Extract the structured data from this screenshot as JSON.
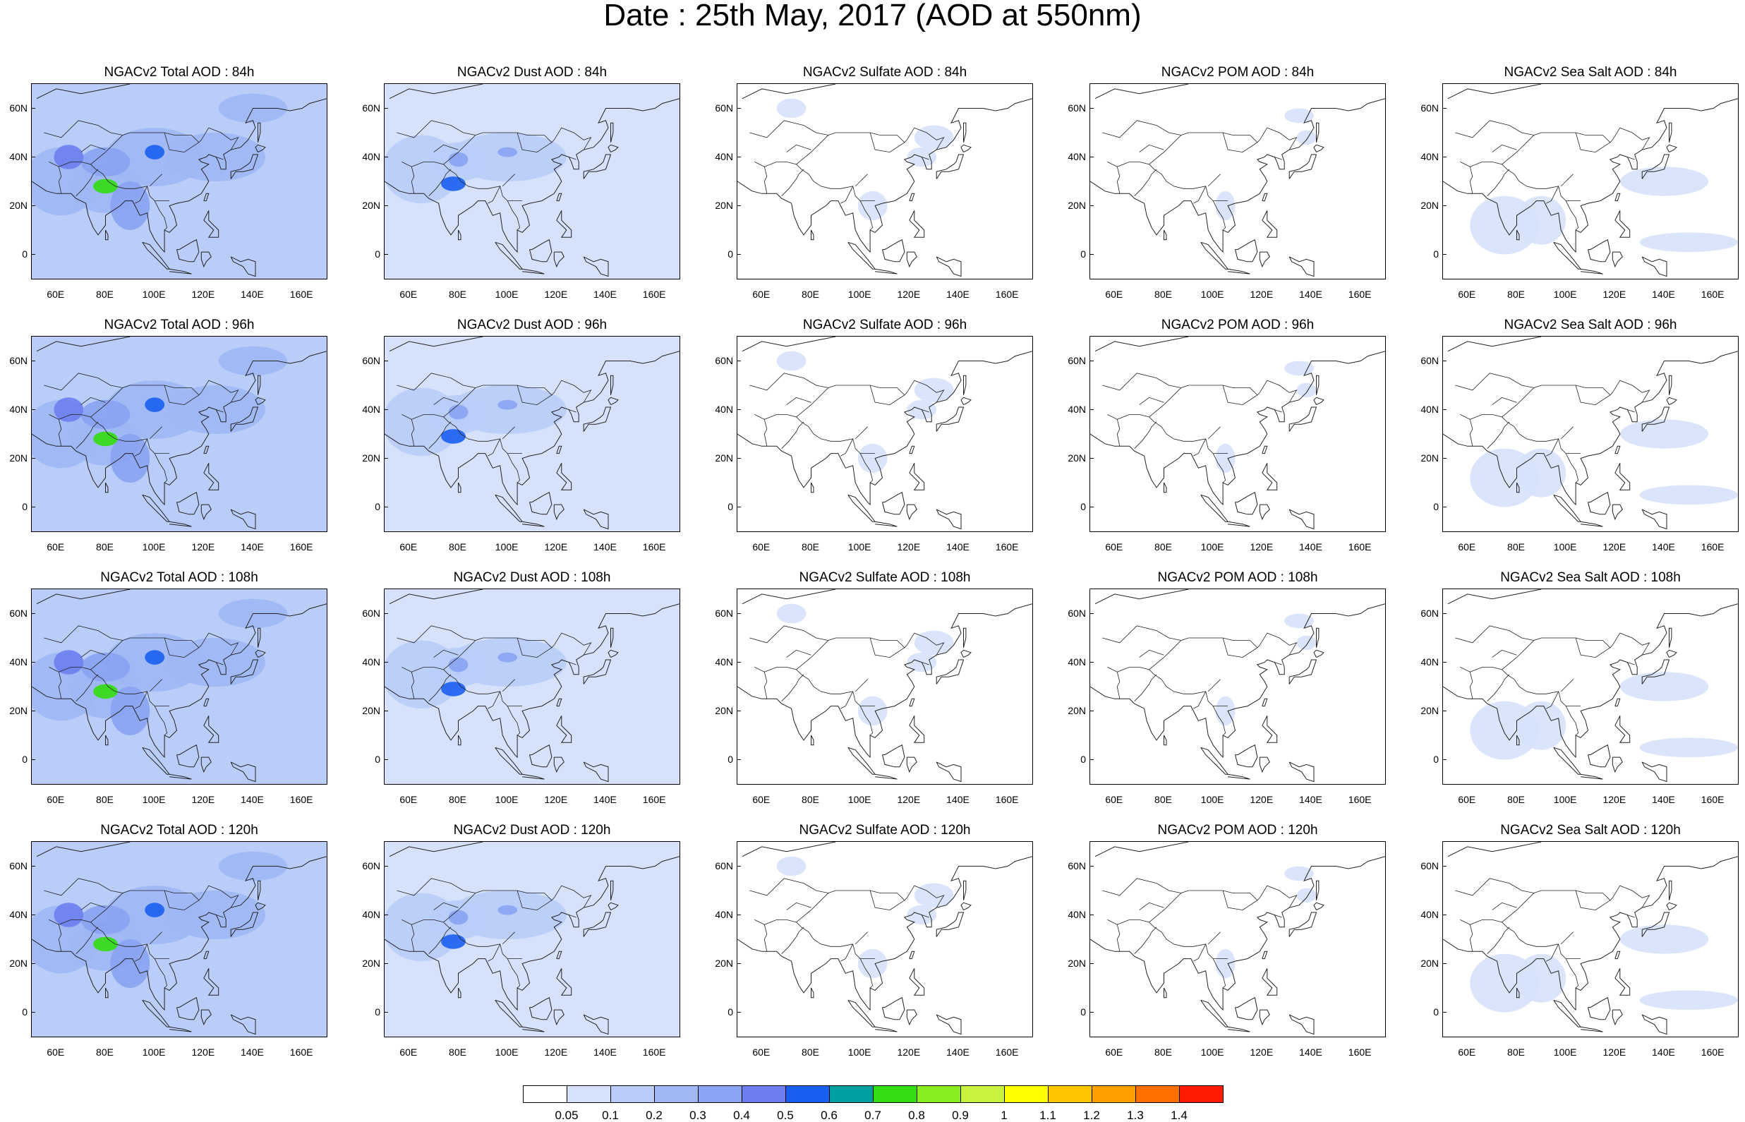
{
  "title": "Date : 25th May, 2017 (AOD at 550nm)",
  "axes": {
    "x_ticks": [
      "60E",
      "80E",
      "100E",
      "120E",
      "140E",
      "160E"
    ],
    "x_tick_values": [
      60,
      80,
      100,
      120,
      140,
      160
    ],
    "y_ticks": [
      "60N",
      "40N",
      "20N",
      "0"
    ],
    "y_tick_values": [
      60,
      40,
      20,
      0
    ],
    "lon_range": [
      50,
      170
    ],
    "lat_range": [
      -10,
      70
    ]
  },
  "panels": [
    {
      "title": "NGACv2 Total AOD : 84h",
      "variable": "total",
      "hour": "84h",
      "level": 3
    },
    {
      "title": "NGACv2 Dust AOD : 84h",
      "variable": "dust",
      "hour": "84h",
      "level": 2
    },
    {
      "title": "NGACv2 Sulfate AOD : 84h",
      "variable": "sulfate",
      "hour": "84h",
      "level": 1
    },
    {
      "title": "NGACv2 POM AOD : 84h",
      "variable": "pom",
      "hour": "84h",
      "level": 1
    },
    {
      "title": "NGACv2 Sea Salt AOD : 84h",
      "variable": "seasalt",
      "hour": "84h",
      "level": 1
    },
    {
      "title": "NGACv2 Total AOD : 96h",
      "variable": "total",
      "hour": "96h",
      "level": 3
    },
    {
      "title": "NGACv2 Dust AOD : 96h",
      "variable": "dust",
      "hour": "96h",
      "level": 2
    },
    {
      "title": "NGACv2 Sulfate AOD : 96h",
      "variable": "sulfate",
      "hour": "96h",
      "level": 1
    },
    {
      "title": "NGACv2 POM AOD : 96h",
      "variable": "pom",
      "hour": "96h",
      "level": 1
    },
    {
      "title": "NGACv2 Sea Salt AOD : 96h",
      "variable": "seasalt",
      "hour": "96h",
      "level": 1
    },
    {
      "title": "NGACv2 Total AOD : 108h",
      "variable": "total",
      "hour": "108h",
      "level": 3
    },
    {
      "title": "NGACv2 Dust AOD : 108h",
      "variable": "dust",
      "hour": "108h",
      "level": 2
    },
    {
      "title": "NGACv2 Sulfate AOD : 108h",
      "variable": "sulfate",
      "hour": "108h",
      "level": 1
    },
    {
      "title": "NGACv2 POM AOD : 108h",
      "variable": "pom",
      "hour": "108h",
      "level": 1
    },
    {
      "title": "NGACv2 Sea Salt AOD : 108h",
      "variable": "seasalt",
      "hour": "108h",
      "level": 1
    },
    {
      "title": "NGACv2 Total AOD : 120h",
      "variable": "total",
      "hour": "120h",
      "level": 3
    },
    {
      "title": "NGACv2 Dust AOD : 120h",
      "variable": "dust",
      "hour": "120h",
      "level": 2
    },
    {
      "title": "NGACv2 Sulfate AOD : 120h",
      "variable": "sulfate",
      "hour": "120h",
      "level": 1
    },
    {
      "title": "NGACv2 POM AOD : 120h",
      "variable": "pom",
      "hour": "120h",
      "level": 1
    },
    {
      "title": "NGACv2 Sea Salt  AOD : 120h",
      "variable": "seasalt",
      "hour": "120h",
      "level": 1
    }
  ],
  "colorbar": {
    "labels": [
      "0.05",
      "0.1",
      "0.2",
      "0.3",
      "0.4",
      "0.5",
      "0.6",
      "0.7",
      "0.8",
      "0.9",
      "1",
      "1.1",
      "1.2",
      "1.3",
      "1.4"
    ],
    "colors": [
      "#ffffff",
      "#d6e2fb",
      "#b9cdf8",
      "#9fb8f5",
      "#8aa3f2",
      "#6d7ef0",
      "#1a5ff0",
      "#00a0a0",
      "#33dd11",
      "#88ee22",
      "#c8f440",
      "#ffff00",
      "#ffc400",
      "#ffa000",
      "#ff7000",
      "#ff1a00"
    ]
  }
}
